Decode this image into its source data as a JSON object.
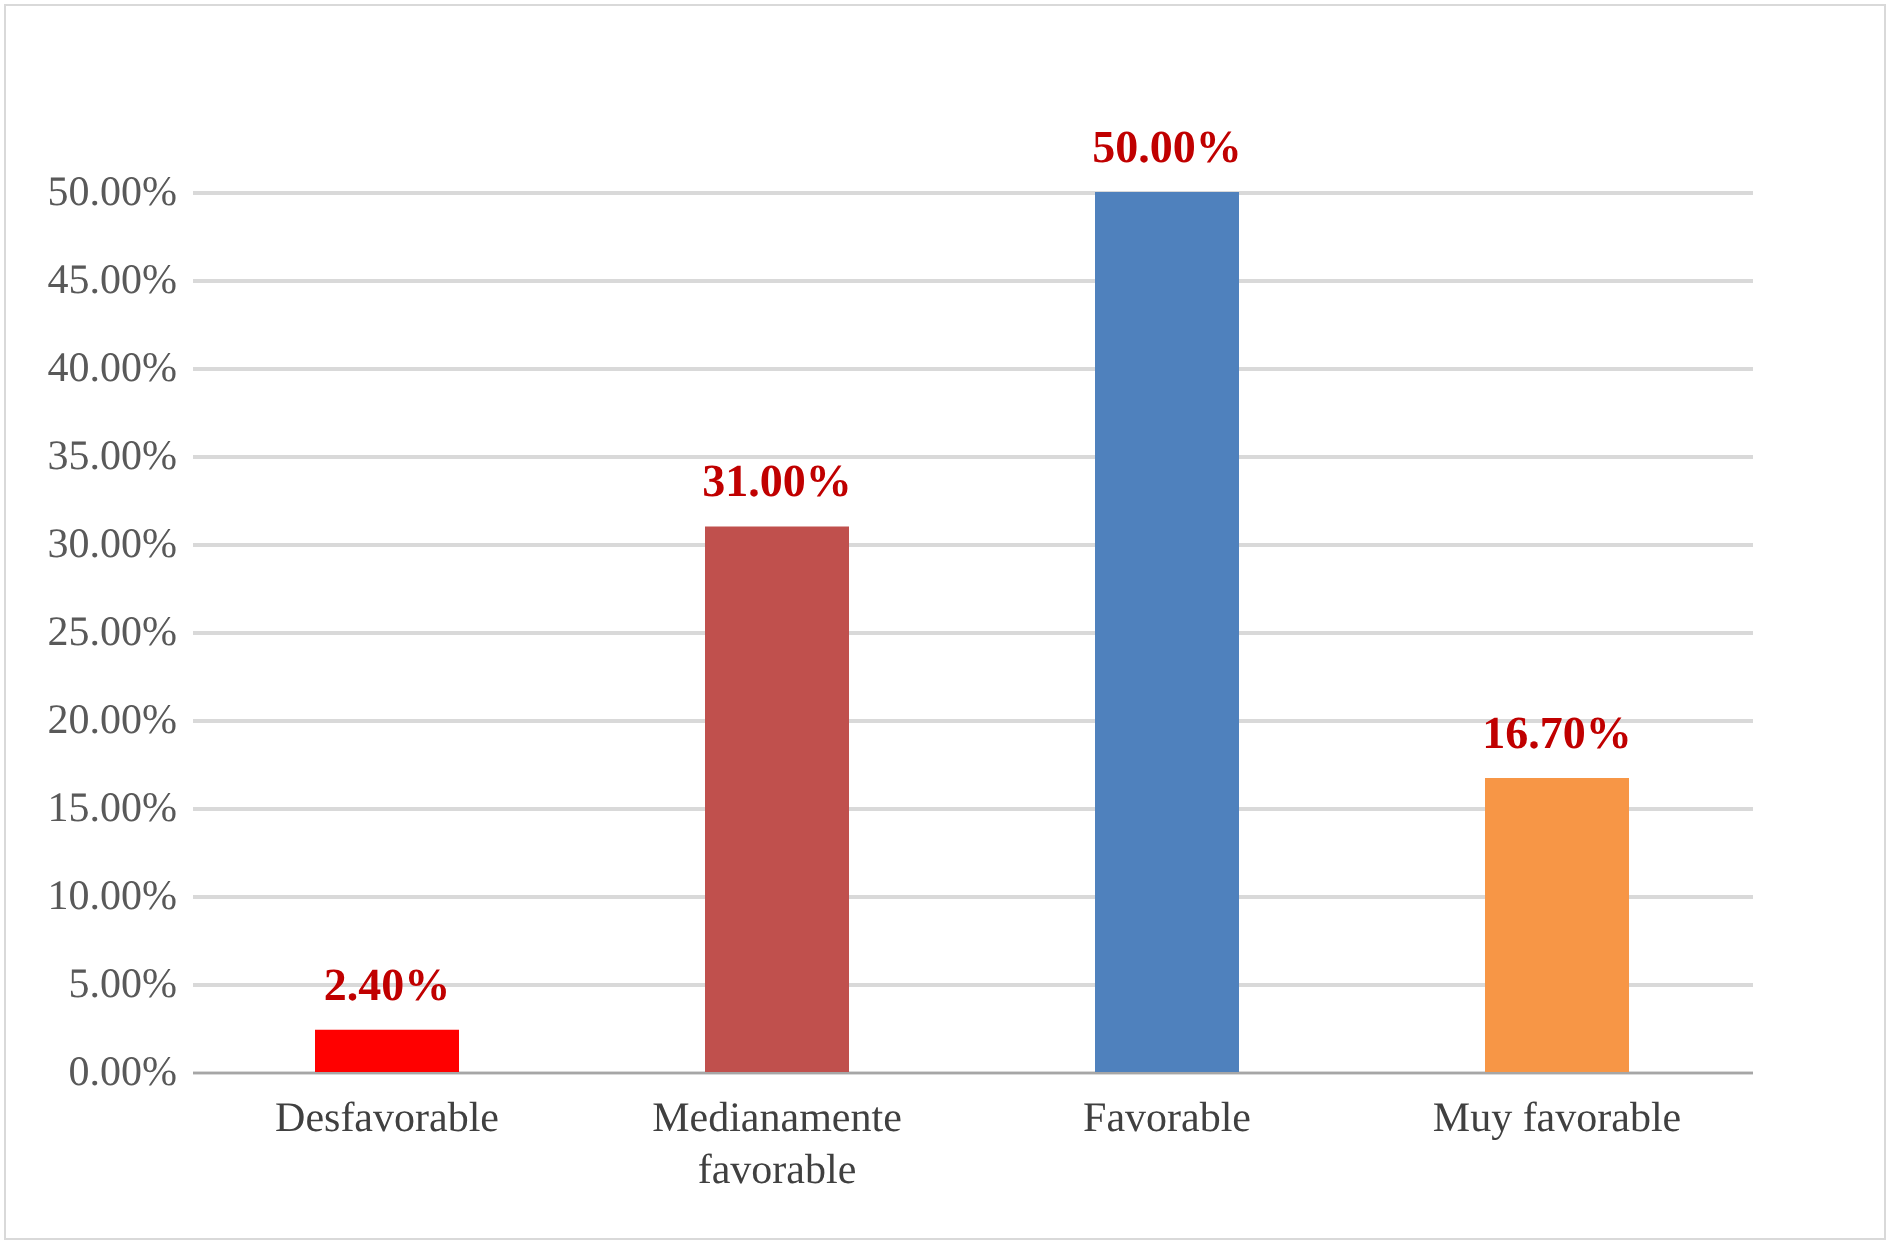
{
  "chart_data": {
    "type": "bar",
    "categories": [
      "Desfavorable",
      "Medianamente favorable",
      "Favorable",
      "Muy favorable"
    ],
    "values": [
      2.4,
      31,
      50,
      16.7
    ],
    "colors": [
      "#ff0000",
      "#c0504d",
      "#4f81bd",
      "#f79646"
    ],
    "value_labels": [
      "2.40%",
      "31.00%",
      "50.00%",
      "16.70%"
    ],
    "ylim": [
      0,
      50
    ],
    "yticks": [
      {
        "value": 0,
        "label": "0.00%"
      },
      {
        "value": 5,
        "label": "5.00%"
      },
      {
        "value": 10,
        "label": "10.00%"
      },
      {
        "value": 15,
        "label": "15.00%"
      },
      {
        "value": 20,
        "label": "20.00%"
      },
      {
        "value": 25,
        "label": "25.00%"
      },
      {
        "value": 30,
        "label": "30.00%"
      },
      {
        "value": 35,
        "label": "35.00%"
      },
      {
        "value": 40,
        "label": "40.00%"
      },
      {
        "value": 45,
        "label": "45.00%"
      },
      {
        "value": 50,
        "label": "50.00%"
      }
    ],
    "grid": "y"
  }
}
